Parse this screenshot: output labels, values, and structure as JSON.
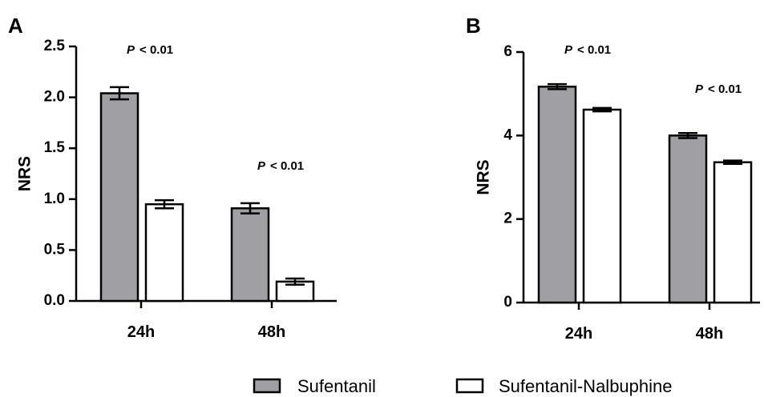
{
  "chart_data": [
    {
      "panel": "A",
      "type": "bar",
      "ylabel": "NRS",
      "ylim": [
        0,
        2.5
      ],
      "yticks": [
        "0.0",
        "0.5",
        "1.0",
        "1.5",
        "2.0",
        "2.5"
      ],
      "categories": [
        "24h",
        "48h"
      ],
      "series": [
        {
          "name": "Sufentanil",
          "values": [
            2.04,
            0.91
          ],
          "errors": [
            0.06,
            0.05
          ],
          "color": "#a0a0a4"
        },
        {
          "name": "Sufentanil-Nalbuphine",
          "values": [
            0.95,
            0.19
          ],
          "errors": [
            0.04,
            0.03
          ],
          "color": "#ffffff"
        }
      ],
      "annotations": [
        {
          "category": "24h",
          "p": "P",
          "text": "< 0.01"
        },
        {
          "category": "48h",
          "p": "P",
          "text": "< 0.01"
        }
      ]
    },
    {
      "panel": "B",
      "type": "bar",
      "ylabel": "NRS",
      "ylim": [
        0,
        6
      ],
      "yticks": [
        "0",
        "2",
        "4",
        "6"
      ],
      "categories": [
        "24h",
        "48h"
      ],
      "series": [
        {
          "name": "Sufentanil",
          "values": [
            5.17,
            4.0
          ],
          "errors": [
            0.06,
            0.06
          ],
          "color": "#a0a0a4"
        },
        {
          "name": "Sufentanil-Nalbuphine",
          "values": [
            4.62,
            3.36
          ],
          "errors": [
            0.04,
            0.04
          ],
          "color": "#ffffff"
        }
      ],
      "annotations": [
        {
          "category": "24h",
          "p": "P",
          "text": "< 0.01"
        },
        {
          "category": "48h",
          "p": "P",
          "text": "< 0.01"
        }
      ]
    }
  ],
  "legend": {
    "placement": "bottom",
    "items": [
      {
        "label": "Sufentanil",
        "color": "#a0a0a4"
      },
      {
        "label": "Sufentanil-Nalbuphine",
        "color": "#ffffff"
      }
    ]
  }
}
